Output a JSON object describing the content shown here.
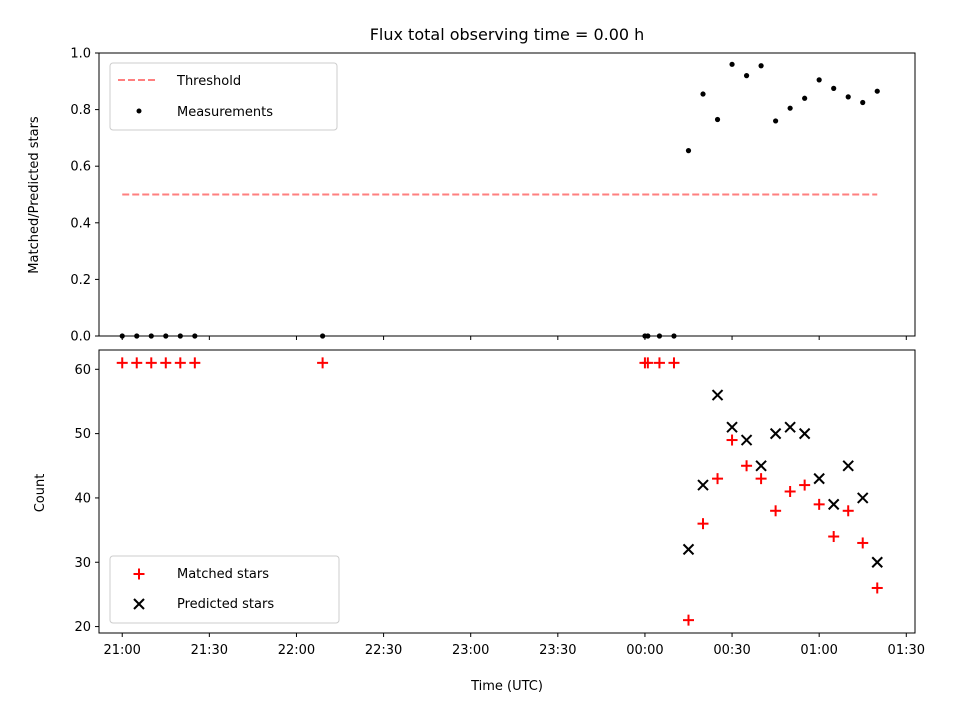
{
  "chart_data": [
    {
      "type": "scatter",
      "title": "Flux total observing time = 0.00 h",
      "xlabel": "",
      "ylabel": "Matched/Predicted stars",
      "ylim": [
        0,
        1.0
      ],
      "yticks": [
        "0.0",
        "0.2",
        "0.4",
        "0.6",
        "0.8",
        "1.0"
      ],
      "x_range": [
        "20:52",
        "01:33"
      ],
      "threshold": {
        "name": "Threshold",
        "y": 0.5,
        "x_start": "21:00",
        "x_end": "01:20",
        "color": "#ff7f7f",
        "style": "dashed"
      },
      "series": [
        {
          "name": "Measurements",
          "color": "#000000",
          "marker": "dot",
          "points": [
            [
              "21:00",
              0.0
            ],
            [
              "21:05",
              0.0
            ],
            [
              "21:10",
              0.0
            ],
            [
              "21:15",
              0.0
            ],
            [
              "21:20",
              0.0
            ],
            [
              "21:25",
              0.0
            ],
            [
              "22:09",
              0.0
            ],
            [
              "00:00",
              0.0
            ],
            [
              "00:01",
              0.0
            ],
            [
              "00:05",
              0.0
            ],
            [
              "00:10",
              0.0
            ],
            [
              "00:15",
              0.655
            ],
            [
              "00:20",
              0.855
            ],
            [
              "00:25",
              0.765
            ],
            [
              "00:30",
              0.96
            ],
            [
              "00:35",
              0.92
            ],
            [
              "00:40",
              0.955
            ],
            [
              "00:45",
              0.76
            ],
            [
              "00:50",
              0.805
            ],
            [
              "00:55",
              0.84
            ],
            [
              "01:00",
              0.905
            ],
            [
              "01:05",
              0.875
            ],
            [
              "01:10",
              0.845
            ],
            [
              "01:15",
              0.825
            ],
            [
              "01:20",
              0.865
            ]
          ]
        }
      ],
      "legend": "upper left"
    },
    {
      "type": "scatter",
      "title": "",
      "xlabel": "Time (UTC)",
      "ylabel": "Count",
      "ylim": [
        19,
        63
      ],
      "yticks": [
        "20",
        "30",
        "40",
        "50",
        "60"
      ],
      "xticks": [
        "21:00",
        "21:30",
        "22:00",
        "22:30",
        "23:00",
        "23:30",
        "00:00",
        "00:30",
        "01:00",
        "01:30"
      ],
      "x_range": [
        "20:52",
        "01:33"
      ],
      "series": [
        {
          "name": "Matched stars",
          "color": "#ff0000",
          "marker": "plus",
          "points": [
            [
              "21:00",
              61
            ],
            [
              "21:05",
              61
            ],
            [
              "21:10",
              61
            ],
            [
              "21:15",
              61
            ],
            [
              "21:20",
              61
            ],
            [
              "21:25",
              61
            ],
            [
              "22:09",
              61
            ],
            [
              "00:00",
              61
            ],
            [
              "00:01",
              61
            ],
            [
              "00:05",
              61
            ],
            [
              "00:10",
              61
            ],
            [
              "00:15",
              21
            ],
            [
              "00:20",
              36
            ],
            [
              "00:25",
              43
            ],
            [
              "00:30",
              49
            ],
            [
              "00:35",
              45
            ],
            [
              "00:40",
              43
            ],
            [
              "00:45",
              38
            ],
            [
              "00:50",
              41
            ],
            [
              "00:55",
              42
            ],
            [
              "01:00",
              39
            ],
            [
              "01:05",
              34
            ],
            [
              "01:10",
              38
            ],
            [
              "01:15",
              33
            ],
            [
              "01:20",
              26
            ]
          ]
        },
        {
          "name": "Predicted stars",
          "color": "#000000",
          "marker": "x",
          "points": [
            [
              "00:15",
              32
            ],
            [
              "00:20",
              42
            ],
            [
              "00:25",
              56
            ],
            [
              "00:30",
              51
            ],
            [
              "00:35",
              49
            ],
            [
              "00:40",
              45
            ],
            [
              "00:45",
              50
            ],
            [
              "00:50",
              51
            ],
            [
              "00:55",
              50
            ],
            [
              "01:00",
              43
            ],
            [
              "01:05",
              39
            ],
            [
              "01:10",
              45
            ],
            [
              "01:15",
              40
            ],
            [
              "01:20",
              30
            ]
          ]
        }
      ],
      "legend": "lower left"
    }
  ]
}
